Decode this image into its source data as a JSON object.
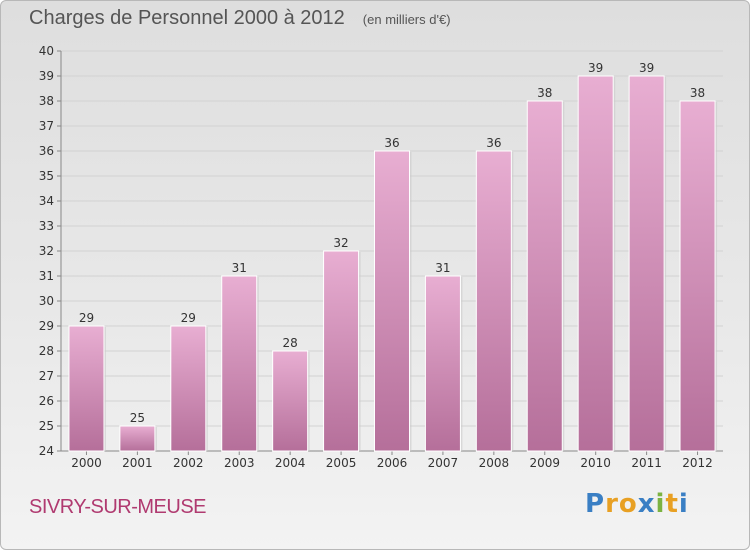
{
  "header": {
    "title": "Charges de Personnel 2000 à 2012",
    "subtitle": "(en milliers d'€)"
  },
  "footer": {
    "place": "SIVRY-SUR-MEUSE",
    "logo": {
      "letters": [
        "P",
        "r",
        "o",
        "x",
        "i",
        "t",
        "i"
      ],
      "colors": [
        "#3a7fc4",
        "#e8a023",
        "#e8a023",
        "#3a7fc4",
        "#7cb342",
        "#e8a023",
        "#3a7fc4"
      ]
    }
  },
  "chart_data": {
    "type": "bar",
    "categories": [
      "2000",
      "2001",
      "2002",
      "2003",
      "2004",
      "2005",
      "2006",
      "2007",
      "2008",
      "2009",
      "2010",
      "2011",
      "2012"
    ],
    "values": [
      29,
      25,
      29,
      31,
      28,
      32,
      36,
      31,
      36,
      38,
      39,
      39,
      38
    ],
    "data_labels": [
      "29",
      "25",
      "29",
      "31",
      "28",
      "32",
      "36",
      "31",
      "36",
      "38",
      "39",
      "39",
      "38"
    ],
    "ylim": [
      24,
      40
    ],
    "yticks": [
      "24",
      "25",
      "26",
      "27",
      "28",
      "29",
      "30",
      "31",
      "32",
      "33",
      "34",
      "35",
      "36",
      "37",
      "38",
      "39",
      "40"
    ],
    "grid": true,
    "bar_color_top": "#e8aed2",
    "bar_color_bottom": "#b56f9a"
  }
}
